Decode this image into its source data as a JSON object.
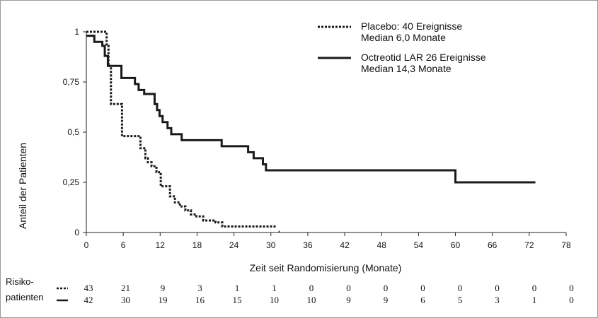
{
  "chart_data": {
    "type": "line",
    "step": true,
    "xlabel": "Zeit seit Randomisierung (Monate)",
    "ylabel": "Anteil der Patienten",
    "xlim": [
      0,
      78
    ],
    "ylim": [
      0,
      1
    ],
    "x_ticks": [
      0,
      6,
      12,
      18,
      24,
      30,
      36,
      42,
      48,
      54,
      60,
      66,
      72,
      78
    ],
    "y_ticks": [
      0,
      0.25,
      0.5,
      0.75,
      1
    ],
    "y_tick_labels": [
      "0",
      "0,25",
      "0,5",
      "0,75",
      "1"
    ],
    "grid": false,
    "legend_position": "top-right",
    "series": [
      {
        "name": "Placebo: 40 Ereignisse",
        "name_line2": "Median 6,0 Monate",
        "style": "dotted",
        "color": "#1a1a1a",
        "x": [
          0,
          1.5,
          2.6,
          3.3,
          3.6,
          4.0,
          4.3,
          5.8,
          6.3,
          8.0,
          8.8,
          9.6,
          10.0,
          10.6,
          11.4,
          12.1,
          12.8,
          13.6,
          14.4,
          15.2,
          16.1,
          17.0,
          17.9,
          19.0,
          21.0,
          22.1,
          24.0,
          31.0
        ],
        "y": [
          1,
          1,
          1,
          0.93,
          0.83,
          0.64,
          0.64,
          0.48,
          0.48,
          0.48,
          0.42,
          0.37,
          0.35,
          0.33,
          0.3,
          0.23,
          0.23,
          0.18,
          0.15,
          0.13,
          0.11,
          0.09,
          0.08,
          0.06,
          0.05,
          0.03,
          0.03,
          0.03
        ]
      },
      {
        "name": "Octreotid LAR 26 Ereignisse",
        "name_line2": "Median 14,3 Monate",
        "style": "solid",
        "color": "#1a1a1a",
        "x": [
          0,
          1.3,
          2.0,
          2.6,
          3.0,
          3.5,
          4.2,
          5.7,
          6.2,
          7.9,
          8.5,
          9.4,
          10.0,
          11.1,
          11.5,
          11.9,
          12.4,
          13.2,
          13.8,
          14.3,
          15.5,
          22.0,
          26.3,
          27.2,
          28.7,
          29.2,
          60.0,
          73.0
        ],
        "y": [
          0.98,
          0.95,
          0.95,
          0.93,
          0.88,
          0.83,
          0.83,
          0.77,
          0.77,
          0.74,
          0.71,
          0.69,
          0.69,
          0.64,
          0.61,
          0.58,
          0.55,
          0.52,
          0.49,
          0.49,
          0.46,
          0.43,
          0.4,
          0.37,
          0.34,
          0.31,
          0.25,
          0.25
        ]
      }
    ],
    "risk_table": {
      "header_line1": "Risiko-",
      "header_line2": "patienten",
      "rows": [
        {
          "style": "dotted",
          "values": [
            43,
            21,
            9,
            3,
            1,
            1,
            0,
            0,
            0,
            0,
            0,
            0,
            0,
            0
          ]
        },
        {
          "style": "solid",
          "values": [
            42,
            30,
            19,
            16,
            15,
            10,
            10,
            9,
            9,
            6,
            5,
            3,
            1,
            0
          ]
        }
      ]
    }
  }
}
